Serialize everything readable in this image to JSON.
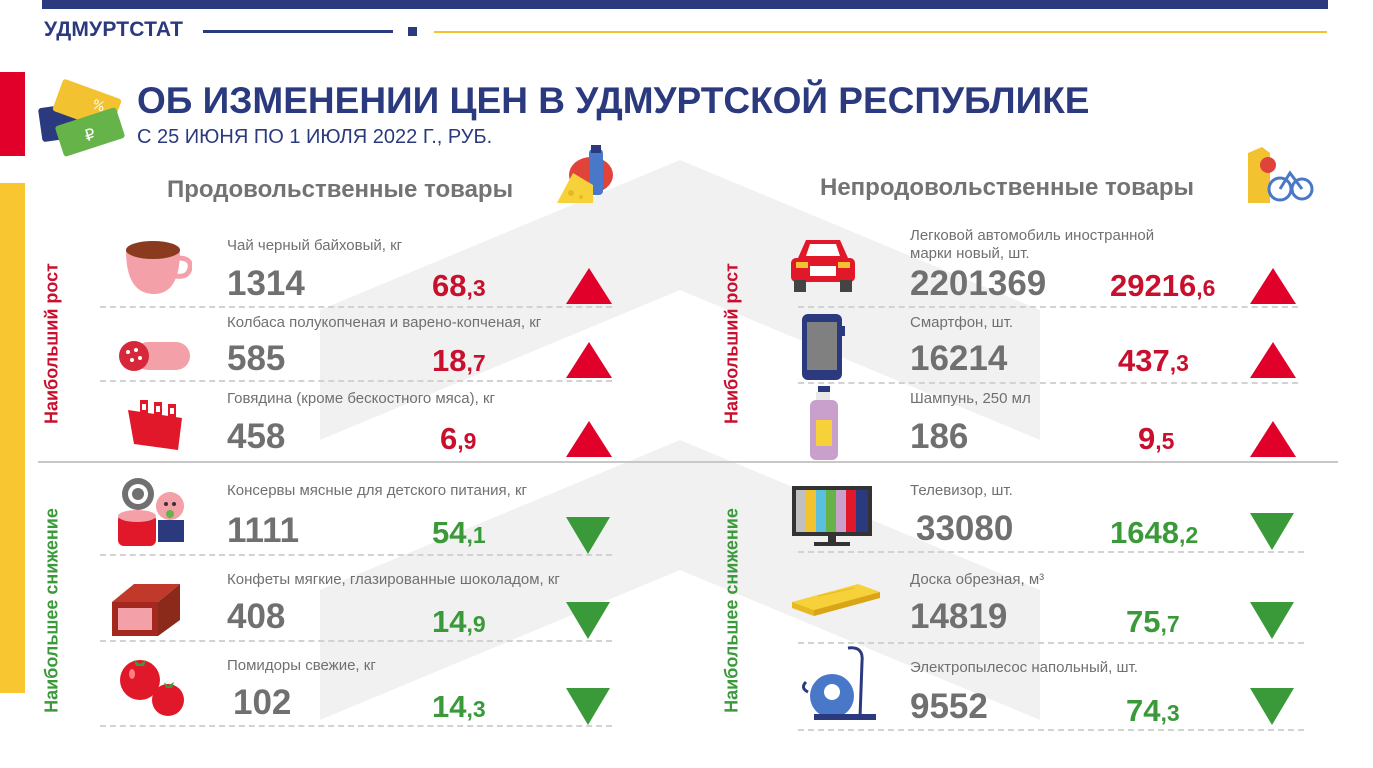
{
  "header": {
    "brand": "УДМУРТСТАТ",
    "title": "ОБ ИЗМЕНЕНИИ ЦЕН В УДМУРТСКОЙ РЕСПУБЛИКЕ",
    "subtitle": "С 25 ИЮНЯ ПО 1 ИЮЛЯ 2022 Г., РУБ."
  },
  "colors": {
    "blue": "#2b3a7e",
    "red": "#e0002a",
    "green": "#3a9a3a",
    "yellow": "#f8c630",
    "gray": "#707070"
  },
  "food": {
    "heading": "Продовольственные товары",
    "rise_label": "Наибольший рост",
    "fall_label": "Наибольшее снижение",
    "rise": [
      {
        "name": "Чай черный байховый, кг",
        "price": "1314",
        "int": "68",
        "frac": ",3",
        "icon": "tea-cup-icon"
      },
      {
        "name": "Колбаса полукопченая и варено-копченая,  кг",
        "price": "585",
        "int": "18",
        "frac": ",7",
        "icon": "sausage-icon"
      },
      {
        "name": "Говядина (кроме бескостного мяса), кг",
        "price": "458",
        "int": "6",
        "frac": ",9",
        "icon": "beef-ribs-icon"
      }
    ],
    "fall": [
      {
        "name": "Консервы мясные для детского питания, кг",
        "price": "1111",
        "int": "54",
        "frac": ",1",
        "icon": "baby-food-can-icon"
      },
      {
        "name": "Конфеты мягкие, глазированные шоколадом, кг",
        "price": "408",
        "int": "14",
        "frac": ",9",
        "icon": "candy-icon"
      },
      {
        "name": "Помидоры свежие, кг",
        "price": "102",
        "int": "14",
        "frac": ",3",
        "icon": "tomato-icon"
      }
    ]
  },
  "nonfood": {
    "heading": "Непродовольственные товары",
    "rise_label": "Наибольший рост",
    "fall_label": "Наибольшее снижение",
    "rise": [
      {
        "name": "Легковой автомобиль иностранной",
        "name2": "марки новый, шт.",
        "price": "2201369",
        "int": "29216",
        "frac": ",6",
        "icon": "car-icon"
      },
      {
        "name": "Смартфон, шт.",
        "name2": "",
        "price": "16214",
        "int": "437",
        "frac": ",3",
        "icon": "smartphone-icon"
      },
      {
        "name": "Шампунь, 250 мл",
        "name2": "",
        "price": "186",
        "int": "9",
        "frac": ",5",
        "icon": "shampoo-icon"
      }
    ],
    "fall": [
      {
        "name": "Телевизор, шт.",
        "name2": "",
        "price": "33080",
        "int": "1648",
        "frac": ",2",
        "icon": "tv-icon"
      },
      {
        "name": "Доска обрезная, м³",
        "name2": "",
        "price": "14819",
        "int": "75",
        "frac": ",7",
        "icon": "plank-icon"
      },
      {
        "name": "Электропылесос напольный, шт.",
        "name2": "",
        "price": "9552",
        "int": "74",
        "frac": ",3",
        "icon": "vacuum-icon"
      }
    ]
  }
}
